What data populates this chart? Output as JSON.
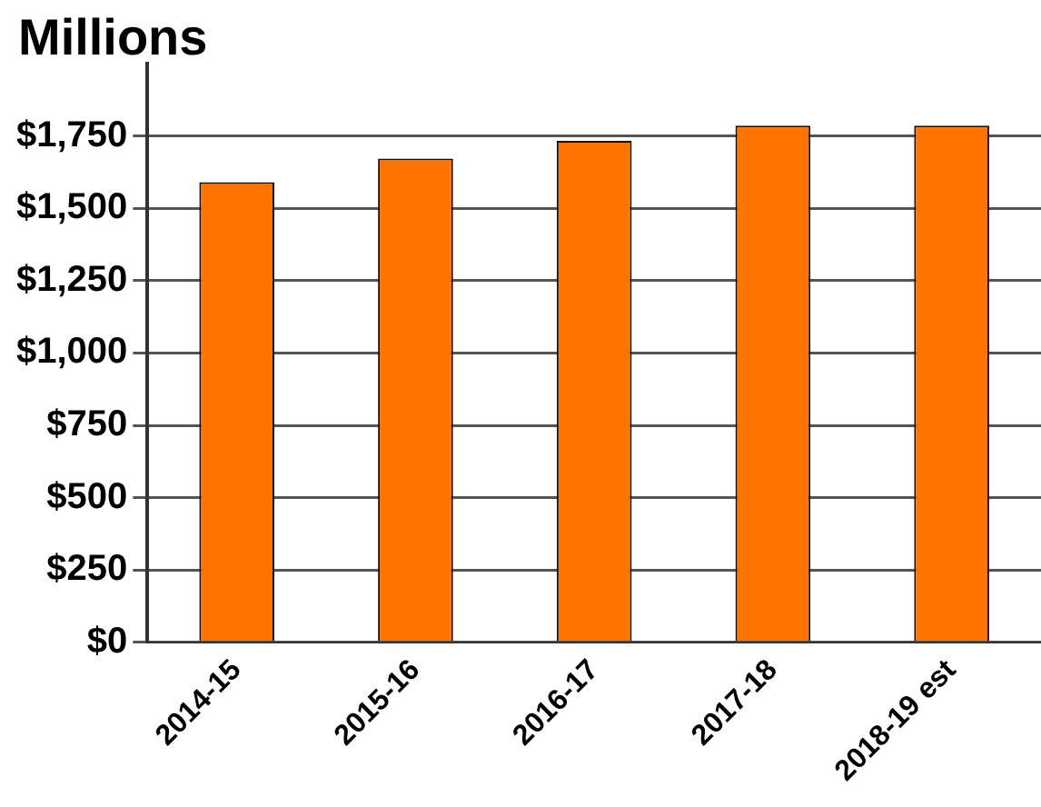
{
  "chart_data": {
    "type": "bar",
    "ylabel": "Millions",
    "categories": [
      "2014-15",
      "2015-16",
      "2016-17",
      "2017-18",
      "2018-19 est"
    ],
    "values": [
      1590,
      1672,
      1733,
      1786,
      1786
    ],
    "color": "#ff7300",
    "ylim": [
      0,
      2000
    ],
    "yticks": [
      {
        "value": 0,
        "label": "$0"
      },
      {
        "value": 250,
        "label": "$250"
      },
      {
        "value": 500,
        "label": "$500"
      },
      {
        "value": 750,
        "label": "$750"
      },
      {
        "value": 1000,
        "label": "$1,000"
      },
      {
        "value": 1250,
        "label": "$1,250"
      },
      {
        "value": 1500,
        "label": "$1,500"
      },
      {
        "value": 1750,
        "label": "$1,750"
      }
    ],
    "grid": "y"
  }
}
